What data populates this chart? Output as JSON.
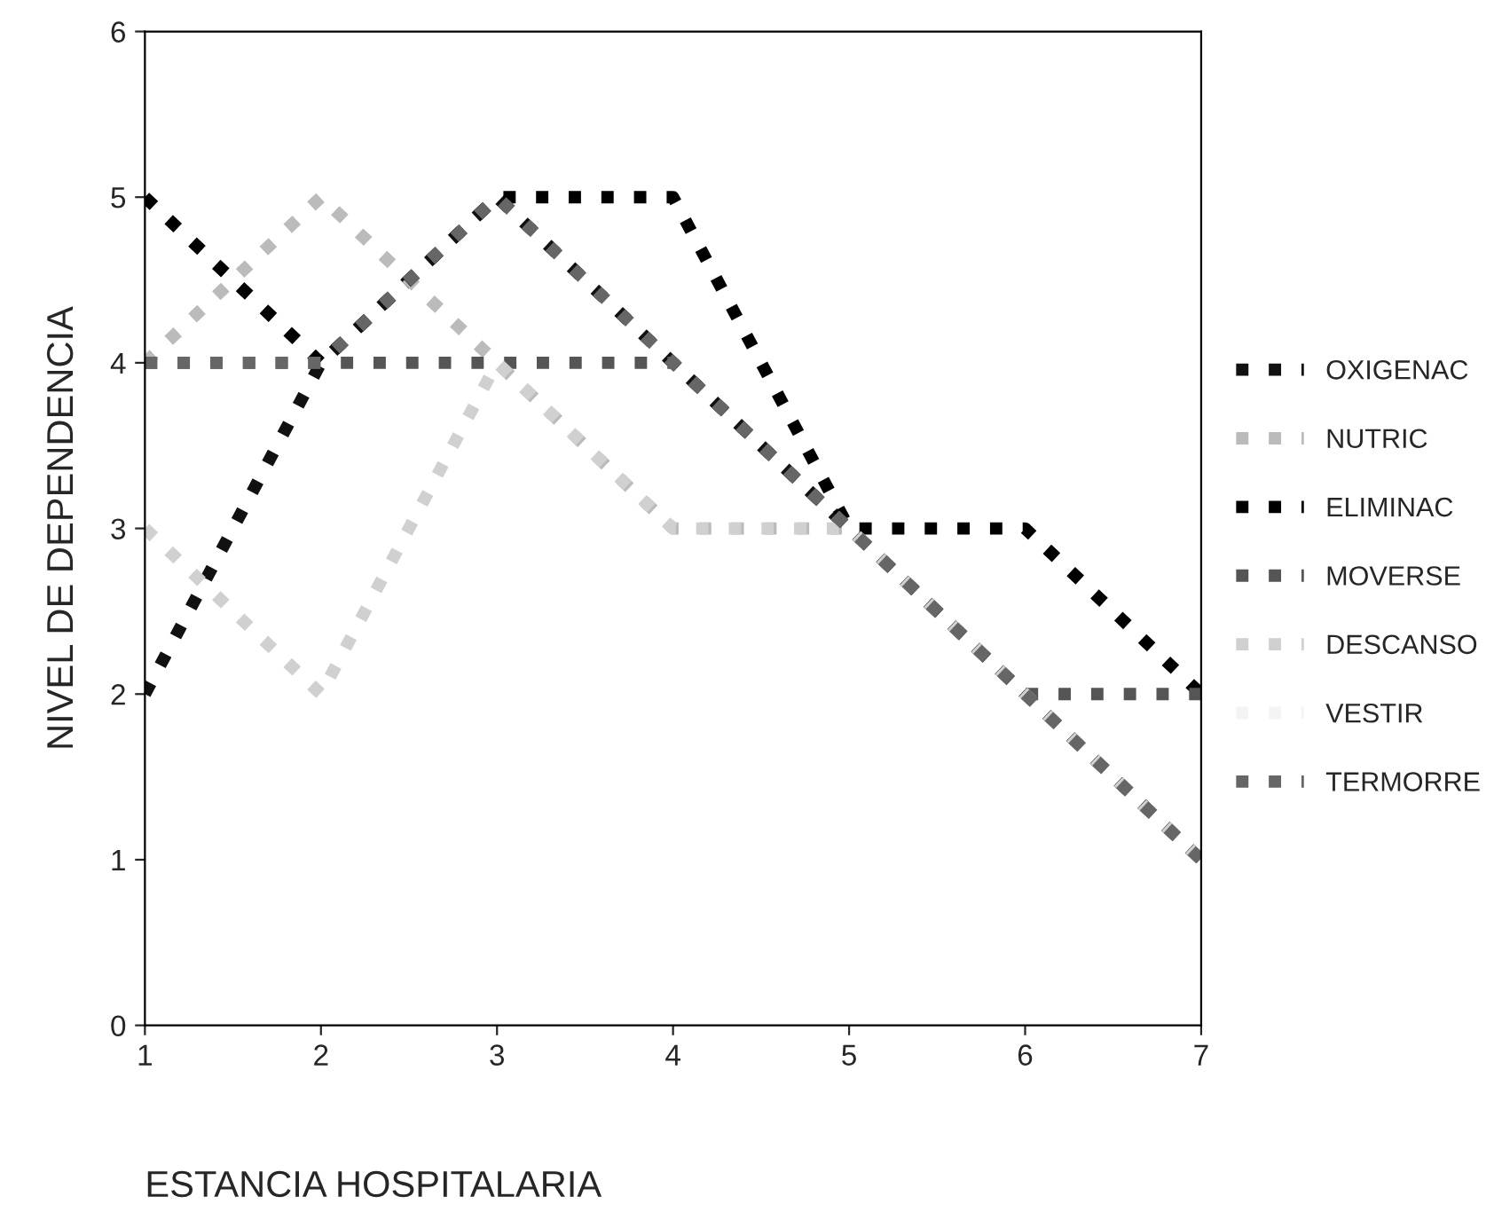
{
  "chart_data": {
    "type": "line",
    "xlabel": "ESTANCIA HOSPITALARIA",
    "ylabel": "NIVEL DE DEPENDENCIA",
    "x": [
      1,
      2,
      3,
      4,
      5,
      6,
      7
    ],
    "xlim": [
      1,
      7
    ],
    "xticks": [
      1,
      2,
      3,
      4,
      5,
      6,
      7
    ],
    "ylim": [
      0,
      6
    ],
    "yticks": [
      0,
      1,
      2,
      3,
      4,
      5,
      6
    ],
    "line_style": "dotted",
    "grid": false,
    "legend": "right",
    "series": [
      {
        "name": "OXIGENAC",
        "color": "#111111",
        "values": [
          2,
          4,
          5,
          4,
          3,
          2,
          1
        ]
      },
      {
        "name": "NUTRIC",
        "color": "#bbbbbb",
        "values": [
          4,
          5,
          4,
          3,
          3,
          2,
          1
        ]
      },
      {
        "name": "ELIMINAC",
        "color": "#000000",
        "values": [
          5,
          4,
          5,
          5,
          3,
          3,
          2
        ]
      },
      {
        "name": "MOVERSE",
        "color": "#555555",
        "values": [
          4,
          4,
          4,
          4,
          3,
          2,
          2
        ]
      },
      {
        "name": "DESCANSO",
        "color": "#d0d0d0",
        "values": [
          3,
          2,
          4,
          3,
          3,
          2,
          1
        ]
      },
      {
        "name": "VESTIR",
        "color": "#f4f4f4",
        "values": [
          null,
          null,
          null,
          null,
          null,
          null,
          null
        ]
      },
      {
        "name": "TERMORRE",
        "color": "#666666",
        "values": [
          4,
          4,
          5,
          4,
          3,
          2,
          1
        ]
      }
    ]
  }
}
